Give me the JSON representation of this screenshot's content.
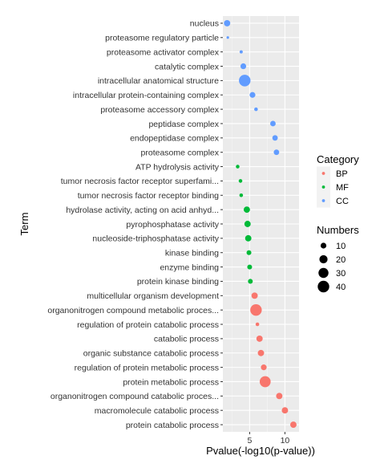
{
  "chart_data": {
    "type": "scatter",
    "xlabel": "Pvalue(-log10(p-value))",
    "ylabel": "Term",
    "xlim": [
      1.2,
      12.0
    ],
    "x_ticks": [
      5,
      10
    ],
    "grid": true,
    "legend_position": "right",
    "color_legend": {
      "title": "Category",
      "entries": [
        {
          "key": "BP",
          "label": "BP",
          "color": "#F8766D"
        },
        {
          "key": "MF",
          "label": "MF",
          "color": "#00BA38"
        },
        {
          "key": "CC",
          "label": "CC",
          "color": "#619CFF"
        }
      ]
    },
    "size_legend": {
      "title": "Numbers",
      "values": [
        10,
        20,
        30,
        40
      ]
    },
    "points": [
      {
        "term": "nucleus",
        "x": 1.8,
        "numbers": 12,
        "category": "CC"
      },
      {
        "term": "proteasome regulatory particle",
        "x": 1.9,
        "numbers": 2,
        "category": "CC"
      },
      {
        "term": "proteasome activator complex",
        "x": 3.8,
        "numbers": 3,
        "category": "CC"
      },
      {
        "term": "catalytic complex",
        "x": 4.1,
        "numbers": 10,
        "category": "CC"
      },
      {
        "term": "intracellular anatomical structure",
        "x": 4.3,
        "numbers": 40,
        "category": "CC"
      },
      {
        "term": "intracellular protein-containing complex",
        "x": 5.4,
        "numbers": 10,
        "category": "CC"
      },
      {
        "term": "proteasome accessory complex",
        "x": 5.9,
        "numbers": 4,
        "category": "CC"
      },
      {
        "term": "peptidase complex",
        "x": 8.3,
        "numbers": 9,
        "category": "CC"
      },
      {
        "term": "endopeptidase complex",
        "x": 8.6,
        "numbers": 9,
        "category": "CC"
      },
      {
        "term": "proteasome complex",
        "x": 8.8,
        "numbers": 9,
        "category": "CC"
      },
      {
        "term": "ATP hydrolysis activity",
        "x": 3.3,
        "numbers": 4,
        "category": "MF"
      },
      {
        "term": "tumor necrosis factor receptor superfami...",
        "x": 3.7,
        "numbers": 4,
        "category": "MF"
      },
      {
        "term": "tumor necrosis factor receptor binding",
        "x": 3.8,
        "numbers": 4,
        "category": "MF"
      },
      {
        "term": "hydrolase activity, acting on acid anhyd...",
        "x": 4.6,
        "numbers": 12,
        "category": "MF"
      },
      {
        "term": "pyrophosphatase activity",
        "x": 4.7,
        "numbers": 12,
        "category": "MF"
      },
      {
        "term": "nucleoside-triphosphatase activity",
        "x": 4.8,
        "numbers": 12,
        "category": "MF"
      },
      {
        "term": "kinase binding",
        "x": 4.9,
        "numbers": 7,
        "category": "MF"
      },
      {
        "term": "enzyme binding",
        "x": 5.0,
        "numbers": 7,
        "category": "MF"
      },
      {
        "term": "protein kinase binding",
        "x": 5.1,
        "numbers": 7,
        "category": "MF"
      },
      {
        "term": "multicellular organism development",
        "x": 5.7,
        "numbers": 12,
        "category": "BP"
      },
      {
        "term": "organonitrogen compound metabolic process",
        "x": 5.9,
        "numbers": 40,
        "category": "BP"
      },
      {
        "term": "regulation of protein catabolic process",
        "x": 6.1,
        "numbers": 4,
        "category": "BP"
      },
      {
        "term": "catabolic process",
        "x": 6.4,
        "numbers": 12,
        "category": "BP"
      },
      {
        "term": "organic substance catabolic process",
        "x": 6.6,
        "numbers": 12,
        "category": "BP"
      },
      {
        "term": "regulation of protein metabolic process",
        "x": 7.0,
        "numbers": 10,
        "category": "BP"
      },
      {
        "term": "protein metabolic process",
        "x": 7.2,
        "numbers": 36,
        "category": "BP"
      },
      {
        "term": "organonitrogen compound catabolic process",
        "x": 9.2,
        "numbers": 12,
        "category": "BP"
      },
      {
        "term": "macromolecule catabolic process",
        "x": 10.0,
        "numbers": 12,
        "category": "BP"
      },
      {
        "term": "protein catabolic process",
        "x": 11.2,
        "numbers": 12,
        "category": "BP"
      }
    ],
    "term_labels": [
      "nucleus",
      "proteasome regulatory particle",
      "proteasome activator complex",
      "catalytic complex",
      "intracellular anatomical structure",
      "intracellular protein-containing complex",
      "proteasome accessory complex",
      "peptidase complex",
      "endopeptidase complex",
      "proteasome complex",
      "ATP hydrolysis activity",
      "tumor necrosis factor receptor superfami...",
      "tumor necrosis factor receptor binding",
      "hydrolase activity, acting on acid anhyd...",
      "pyrophosphatase activity",
      "nucleoside-triphosphatase activity",
      "kinase binding",
      "enzyme binding",
      "protein kinase binding",
      "multicellular organism development",
      "organonitrogen compound metabolic proces...",
      "regulation of protein catabolic process",
      "catabolic process",
      "organic substance catabolic process",
      "regulation of protein metabolic process",
      "protein metabolic process",
      "organonitrogen compound catabolic proces...",
      "macromolecule catabolic process",
      "protein catabolic process"
    ]
  }
}
